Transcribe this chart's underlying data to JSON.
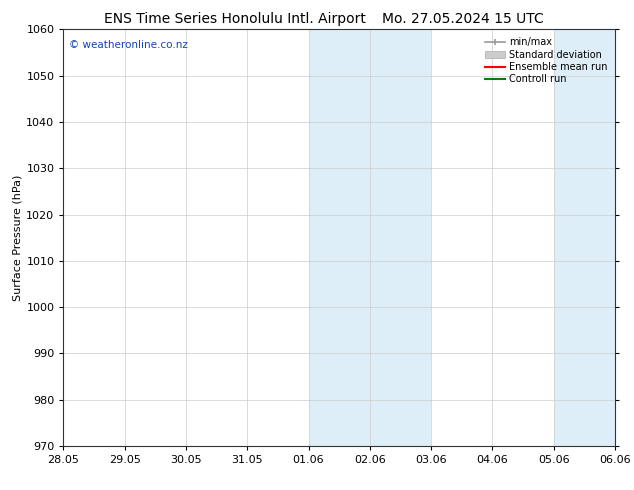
{
  "title_left": "ENS Time Series Honolulu Intl. Airport",
  "title_right": "Mo. 27.05.2024 15 UTC",
  "ylabel": "Surface Pressure (hPa)",
  "ylim": [
    970,
    1060
  ],
  "yticks": [
    970,
    980,
    990,
    1000,
    1010,
    1020,
    1030,
    1040,
    1050,
    1060
  ],
  "xtick_labels": [
    "28.05",
    "29.05",
    "30.05",
    "31.05",
    "01.06",
    "02.06",
    "03.06",
    "04.06",
    "05.06",
    "06.06"
  ],
  "shaded_bands": [
    {
      "start": 4,
      "end": 5
    },
    {
      "start": 5,
      "end": 6
    },
    {
      "start": 8,
      "end": 9
    }
  ],
  "band_color": "#ddeef8",
  "watermark": "© weatheronline.co.nz",
  "watermark_color": "#1144bb",
  "background_color": "#ffffff",
  "spine_color": "#333333",
  "grid_color": "#cccccc",
  "title_fontsize": 10,
  "label_fontsize": 8,
  "ylabel_fontsize": 8,
  "watermark_fontsize": 7.5
}
